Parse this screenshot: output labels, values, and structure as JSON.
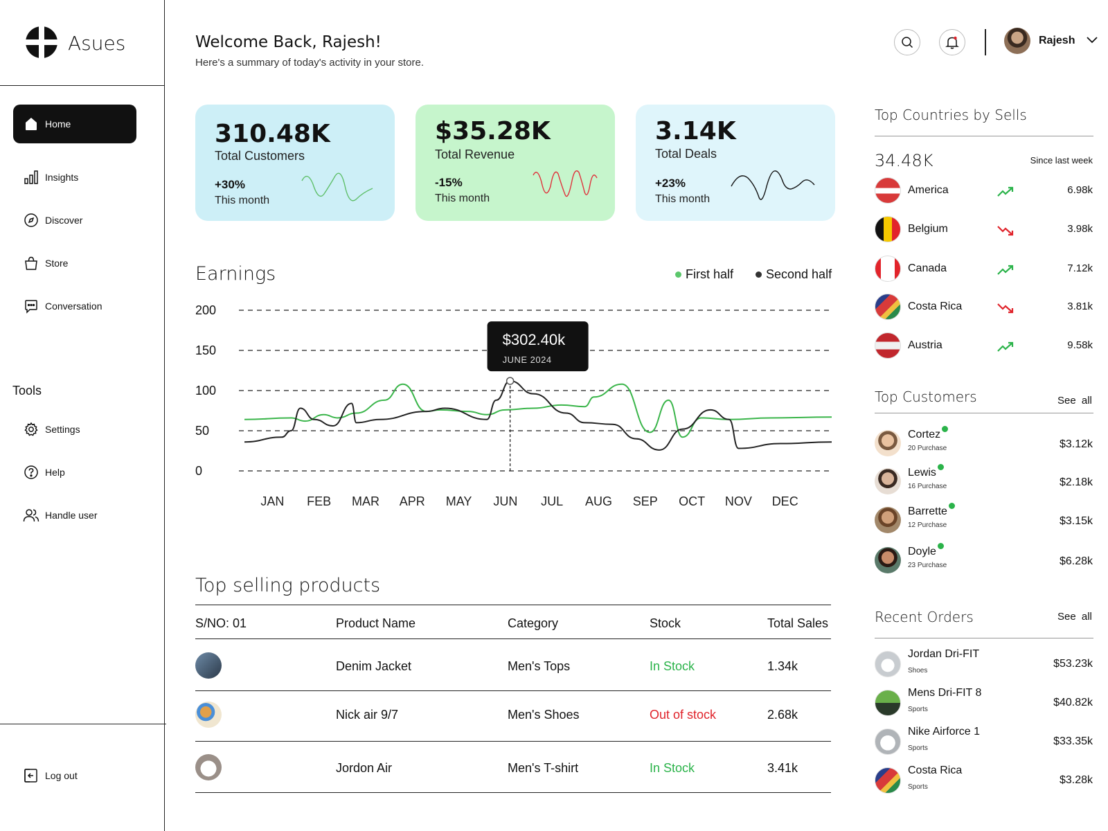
{
  "app": {
    "name": "Asues"
  },
  "sidebar": {
    "items": [
      {
        "label": "Home",
        "icon": "home-icon",
        "active": true
      },
      {
        "label": "Insights",
        "icon": "bar-chart-icon"
      },
      {
        "label": "Discover",
        "icon": "compass-icon"
      },
      {
        "label": "Store",
        "icon": "shopping-bag-icon"
      },
      {
        "label": "Conversation",
        "icon": "chat-icon"
      }
    ],
    "tools_title": "Tools",
    "tools": [
      {
        "label": "Settings",
        "icon": "gear-icon"
      },
      {
        "label": "Help",
        "icon": "help-icon"
      },
      {
        "label": "Handle user",
        "icon": "users-icon"
      }
    ],
    "logout": {
      "label": "Log out",
      "icon": "logout-icon"
    }
  },
  "header": {
    "welcome": "Welcome Back, Rajesh!",
    "subtitle": "Here's a summary of today's activity in your store.",
    "user_name": "Rajesh"
  },
  "stats": [
    {
      "value": "310.48K",
      "label": "Total Customers",
      "change": "+30%",
      "period": "This month",
      "bg": "#cdeff7",
      "spark_color": "#5fbf6a"
    },
    {
      "value": "$35.28K",
      "label": "Total Revenue",
      "change": "-15%",
      "period": "This month",
      "bg": "#c6f5cc",
      "spark_color": "#e0323c"
    },
    {
      "value": "3.14K",
      "label": "Total Deals",
      "change": "+23%",
      "period": "This month",
      "bg": "#dff5fb",
      "spark_color": "#111111"
    }
  ],
  "earnings": {
    "title": "Earnings",
    "legend": [
      {
        "name": "First half",
        "color": "#5cc76c"
      },
      {
        "name": "Second half",
        "color": "#333333"
      }
    ],
    "tooltip": {
      "value": "$302.40k",
      "label": "JUNE 2024"
    }
  },
  "chart_data": {
    "type": "line",
    "title": "Earnings",
    "categories": [
      "JAN",
      "FEB",
      "MAR",
      "APR",
      "MAY",
      "JUN",
      "JUL",
      "AUG",
      "SEP",
      "OCT",
      "NOV",
      "DEC"
    ],
    "y_ticks": [
      "200",
      "150",
      "100",
      "50",
      "0"
    ],
    "ylim": [
      0,
      200
    ],
    "x_range": [
      0,
      12.6
    ],
    "grid": "horizontal dashed",
    "legend": "top-right",
    "series": [
      {
        "name": "First half",
        "color": "#3ab54a",
        "points": [
          [
            0,
            64
          ],
          [
            1.0,
            66
          ],
          [
            1.3,
            62
          ],
          [
            1.7,
            70
          ],
          [
            2.0,
            66
          ],
          [
            2.4,
            72
          ],
          [
            3.0,
            88
          ],
          [
            3.4,
            108
          ],
          [
            3.9,
            74
          ],
          [
            4.2,
            76
          ],
          [
            4.8,
            74
          ],
          [
            5.2,
            70
          ],
          [
            5.6,
            76
          ],
          [
            6.2,
            78
          ],
          [
            6.8,
            82
          ],
          [
            7.3,
            80
          ],
          [
            7.5,
            92
          ],
          [
            8.1,
            108
          ],
          [
            8.7,
            48
          ],
          [
            9.1,
            88
          ],
          [
            9.4,
            42
          ],
          [
            9.8,
            66
          ],
          [
            10.4,
            64
          ],
          [
            11.3,
            66
          ],
          [
            12.6,
            67
          ]
        ]
      },
      {
        "name": "Second half",
        "color": "#222222",
        "points": [
          [
            0,
            36
          ],
          [
            0.8,
            42
          ],
          [
            1.0,
            50
          ],
          [
            1.2,
            78
          ],
          [
            1.5,
            64
          ],
          [
            1.9,
            56
          ],
          [
            2.3,
            84
          ],
          [
            2.4,
            60
          ],
          [
            2.9,
            64
          ],
          [
            3.9,
            74
          ],
          [
            4.3,
            78
          ],
          [
            5.2,
            64
          ],
          [
            5.4,
            88
          ],
          [
            5.7,
            112
          ],
          [
            6.2,
            96
          ],
          [
            6.9,
            72
          ],
          [
            7.3,
            60
          ],
          [
            7.9,
            58
          ],
          [
            8.4,
            40
          ],
          [
            8.9,
            26
          ],
          [
            9.4,
            52
          ],
          [
            10.0,
            76
          ],
          [
            10.4,
            64
          ],
          [
            10.6,
            28
          ],
          [
            11.5,
            34
          ],
          [
            12.6,
            36
          ]
        ]
      }
    ],
    "annotation": {
      "x": 5.7,
      "y": 112,
      "label": "$302.40k",
      "sub": "JUNE 2024"
    }
  },
  "products": {
    "title": "Top selling products",
    "headers": [
      "S/NO: 01",
      "Product Name",
      "Category",
      "Stock",
      "Total Sales"
    ],
    "rows": [
      {
        "name": "Denim Jacket",
        "category": "Men's Tops",
        "stock": "In Stock",
        "stock_color": "#2bb34a",
        "sales": "1.34k",
        "thumb": "linear-gradient(135deg,#6d8aa6,#2c3a4a)"
      },
      {
        "name": "Nick air 9/7",
        "category": "Men's Shoes",
        "stock": "Out of stock",
        "stock_color": "#e0232b",
        "sales": "2.68k",
        "thumb": "radial-gradient(circle at 40% 40%,#e2a04a 0 25%,#4a8fd8 26% 40%,#f0e6d0 41% 100%)"
      },
      {
        "name": "Jordon Air",
        "category": "Men's T-shirt",
        "stock": "In Stock",
        "stock_color": "#2bb34a",
        "sales": "3.41k",
        "thumb": "radial-gradient(circle at 50% 55%,#ffffff 0 40%,#9a8f88 41% 100%)"
      }
    ]
  },
  "countries": {
    "title": "Top Countries by Sells",
    "total": "34.48K",
    "since": "Since last week",
    "items": [
      {
        "name": "America",
        "value": "6.98k",
        "trend": "up",
        "flag": "linear-gradient(180deg,#d83a3a 0 40%,#ffffff 40% 62%,#d83a3a 62% 100%)"
      },
      {
        "name": "Belgium",
        "value": "3.98k",
        "trend": "down",
        "flag": "linear-gradient(90deg,#111 0 33%,#f5c800 33% 66%,#e2242b 66% 100%)"
      },
      {
        "name": "Canada",
        "value": "7.12k",
        "trend": "up",
        "flag": "linear-gradient(90deg,#e2242b 0 22%,#ffffff 22% 78%,#e2242b 78% 100%)"
      },
      {
        "name": "Costa Rica",
        "value": "3.81k",
        "trend": "down",
        "flag": "linear-gradient(135deg,#2a3e8a 0 30%,#d83a3a 30% 55%,#f0c040 55% 70%,#2a8a4a 70% 100%)"
      },
      {
        "name": "Austria",
        "value": "9.58k",
        "trend": "up",
        "flag": "linear-gradient(180deg,#c1272d 0 35%,#f0f0f0 35% 65%,#c1272d 65% 100%)"
      }
    ]
  },
  "customers": {
    "title": "Top Customers",
    "see_all": "See all",
    "items": [
      {
        "name": "Cortez",
        "sub": "20 Purchase",
        "value": "$3.12k",
        "avatar": "radial-gradient(circle at 50% 40%,#e9c2a0 0 30%,#7a5a40 31% 46%,#f3e0cc 47% 100%)"
      },
      {
        "name": "Lewis",
        "sub": "16 Purchase",
        "value": "$2.18k",
        "avatar": "radial-gradient(circle at 50% 40%,#d9b49a 0 30%,#3a2a22 31% 46%,#e7ddd4 47% 100%)"
      },
      {
        "name": "Barrette",
        "sub": "12 Purchase",
        "value": "$3.15k",
        "avatar": "radial-gradient(circle at 50% 40%,#d0a07a 0 30%,#6a4428 31% 46%,#a2886a 47% 100%)"
      },
      {
        "name": "Doyle",
        "sub": "23 Purchase",
        "value": "$6.28k",
        "avatar": "radial-gradient(circle at 50% 40%,#c88c6a 0 30%,#2a1a14 31% 46%,#5a7a6a 47% 100%)"
      }
    ]
  },
  "orders": {
    "title": "Recent Orders",
    "see_all": "See all",
    "items": [
      {
        "name": "Jordan Dri-FIT",
        "sub": "Shoes",
        "value": "$53.23k",
        "img": "radial-gradient(circle at 50% 55%,#ffffff 0 35%,#c8ccd0 36% 100%)"
      },
      {
        "name": "Mens Dri-FIT 8",
        "sub": "Sports",
        "value": "$40.82k",
        "img": "linear-gradient(180deg,#6ab04a 0 50%,#2a3a2a 50% 100%)"
      },
      {
        "name": "Nike Airforce 1",
        "sub": "Sports",
        "value": "$33.35k",
        "img": "radial-gradient(circle at 50% 55%,#ffffff 0 40%,#b0b4b8 41% 100%)"
      },
      {
        "name": "Costa Rica",
        "sub": "Sports",
        "value": "$3.28k",
        "img": "linear-gradient(135deg,#2a3e8a 0 30%,#d83a3a 30% 55%,#f0c040 55% 70%,#2a8a4a 70% 100%)"
      }
    ]
  }
}
